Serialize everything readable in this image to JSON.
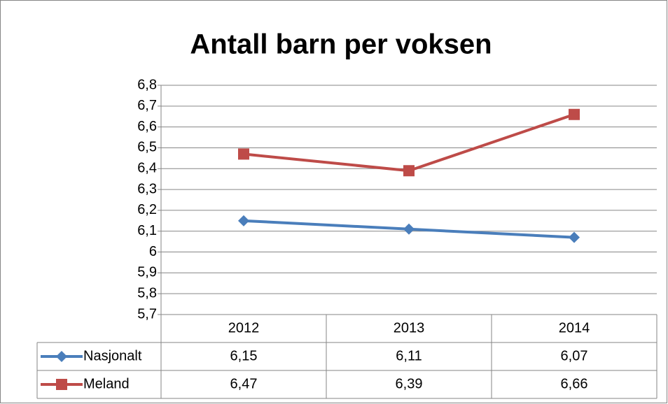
{
  "chart_data": {
    "type": "line",
    "title": "Antall barn per voksen",
    "categories": [
      "2012",
      "2013",
      "2014"
    ],
    "series": [
      {
        "name": "Nasjonalt",
        "color": "#4a7ebb",
        "marker": "diamond",
        "values": [
          6.15,
          6.11,
          6.07
        ],
        "value_labels": [
          "6,15",
          "6,11",
          "6,07"
        ]
      },
      {
        "name": "Meland",
        "color": "#be4b48",
        "marker": "square",
        "values": [
          6.47,
          6.39,
          6.66
        ],
        "value_labels": [
          "6,47",
          "6,39",
          "6,66"
        ]
      }
    ],
    "ylim": [
      5.7,
      6.8
    ],
    "yticks": [
      {
        "value": 5.7,
        "label": "5,7"
      },
      {
        "value": 5.8,
        "label": "5,8"
      },
      {
        "value": 5.9,
        "label": "5,9"
      },
      6,
      {
        "value": 6.1,
        "label": "6,1"
      },
      {
        "value": 6.2,
        "label": "6,2"
      },
      {
        "value": 6.3,
        "label": "6,3"
      },
      {
        "value": 6.4,
        "label": "6,4"
      },
      {
        "value": 6.5,
        "label": "6,5"
      },
      {
        "value": 6.6,
        "label": "6,6"
      },
      {
        "value": 6.7,
        "label": "6,7"
      },
      {
        "value": 6.8,
        "label": "6,8"
      }
    ],
    "grid": true
  }
}
